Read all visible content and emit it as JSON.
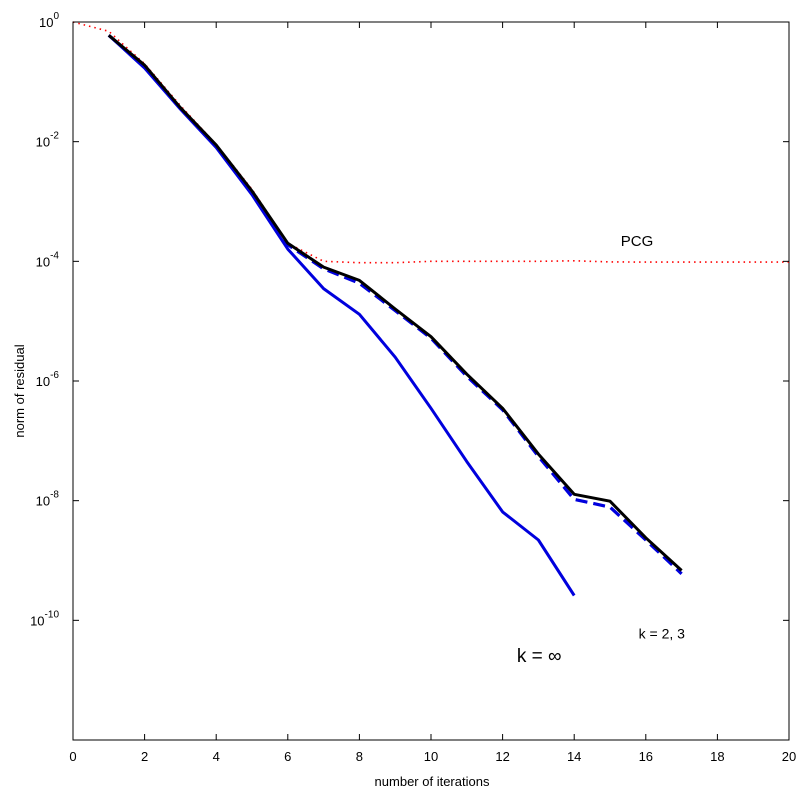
{
  "chart_data": {
    "type": "line",
    "xlabel": "number of iterations",
    "ylabel": "norm of residual",
    "xlim": [
      0,
      20
    ],
    "ylim": [
      1e-12,
      1
    ],
    "y_scale": "log",
    "grid": false,
    "x_ticks": [
      0,
      2,
      4,
      6,
      8,
      10,
      12,
      14,
      16,
      18,
      20
    ],
    "x_tick_labels": [
      "0",
      "2",
      "4",
      "6",
      "8",
      "10",
      "12",
      "14",
      "16",
      "18",
      "20"
    ],
    "y_ticks": [
      {
        "value": 1,
        "base": "10",
        "exp": "0"
      },
      {
        "value": 0.01,
        "base": "10",
        "exp": "-2"
      },
      {
        "value": 0.0001,
        "base": "10",
        "exp": "-4"
      },
      {
        "value": 1e-06,
        "base": "10",
        "exp": "-6"
      },
      {
        "value": 1e-08,
        "base": "10",
        "exp": "-8"
      },
      {
        "value": 1e-10,
        "base": "10",
        "exp": "-10"
      }
    ],
    "series": [
      {
        "name": "PCG",
        "color": "#ff0000",
        "style": "dotted",
        "x": [
          0,
          1,
          2,
          3,
          4,
          5,
          6,
          7,
          8,
          9,
          10,
          11,
          12,
          13,
          14,
          15,
          16,
          17,
          18,
          19,
          20
        ],
        "y": [
          1.0,
          0.7,
          0.2,
          0.04,
          0.009,
          0.0016,
          0.0002,
          0.0001,
          9.5e-05,
          9.5e-05,
          0.0001,
          0.0001,
          0.0001,
          0.0001,
          0.000102,
          9.8e-05,
          9.7e-05,
          9.7e-05,
          9.7e-05,
          9.7e-05,
          9.7e-05
        ]
      },
      {
        "name": "",
        "color": "#0000dd",
        "style": "solid",
        "x": [
          1,
          2,
          3,
          4,
          5,
          6,
          7,
          8,
          9,
          10,
          11,
          12,
          13,
          14
        ],
        "y": [
          0.6,
          0.17,
          0.035,
          0.008,
          0.0013,
          0.00016,
          3.5e-05,
          1.3e-05,
          2.5e-06,
          3.5e-07,
          4.5e-08,
          6.5e-09,
          2.2e-09,
          2.6e-10
        ]
      },
      {
        "name": "",
        "color": "#0000dd",
        "style": "dashed",
        "x": [
          1,
          2,
          3,
          4,
          5,
          6,
          7,
          8,
          9,
          10,
          11,
          12,
          13,
          14,
          15,
          16,
          17
        ],
        "y": [
          0.6,
          0.18,
          0.036,
          0.0085,
          0.0014,
          0.00019,
          7.5e-05,
          4.3e-05,
          1.5e-05,
          5.2e-06,
          1.2e-06,
          3.3e-07,
          5.5e-08,
          1.05e-08,
          7.8e-09,
          2.2e-09,
          6e-10
        ]
      },
      {
        "name": "",
        "color": "#000000",
        "style": "solid",
        "x": [
          1,
          2,
          3,
          4,
          5,
          6,
          7,
          8,
          9,
          10,
          11,
          12,
          13,
          14,
          15,
          16,
          17
        ],
        "y": [
          0.6,
          0.19,
          0.037,
          0.0088,
          0.0015,
          0.0002,
          8e-05,
          4.8e-05,
          1.6e-05,
          5.5e-06,
          1.3e-06,
          3.5e-07,
          6e-08,
          1.28e-08,
          9.8e-09,
          2.4e-09,
          6.8e-10
        ]
      }
    ],
    "annotations": [
      {
        "text": "PCG",
        "x": 15.3,
        "y": 0.00018,
        "size": 15
      },
      {
        "text": "k = ∞",
        "x": 12.4,
        "y": 2e-11,
        "size": 19
      },
      {
        "text": "k = 2, 3",
        "x": 15.8,
        "y": 5e-11,
        "size": 14
      }
    ]
  }
}
